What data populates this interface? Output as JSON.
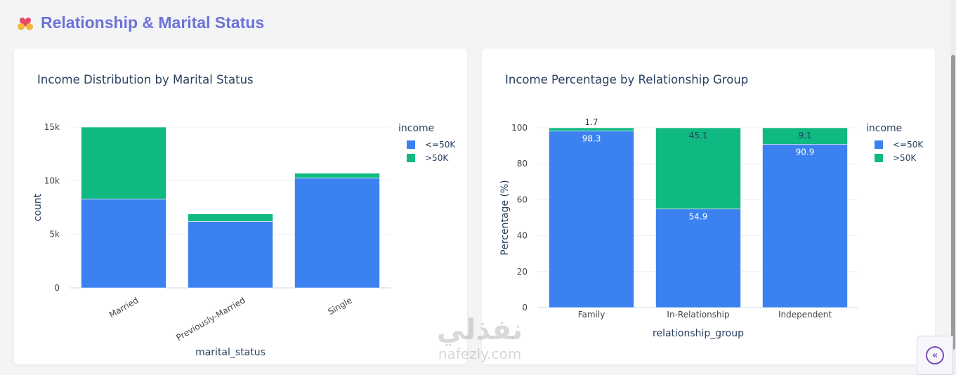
{
  "header": {
    "icon": "heart-hands-icon",
    "title": "Relationship & Marital Status"
  },
  "colors": {
    "le50k": "#3b82f0",
    "gt50k": "#10b981",
    "title": "#6d72d8"
  },
  "chart_data": [
    {
      "type": "bar",
      "stacked": true,
      "title": "Income Distribution by Marital Status",
      "xlabel": "marital_status",
      "ylabel": "count",
      "categories": [
        "Married",
        "Previously-Married",
        "Single"
      ],
      "series": [
        {
          "name": "<=50K",
          "values": [
            8300,
            6200,
            10250
          ]
        },
        {
          "name": ">50K",
          "values": [
            6700,
            700,
            450
          ]
        }
      ],
      "ylim": [
        0,
        15000
      ],
      "yticks": [
        "0",
        "5k",
        "10k",
        "15k"
      ],
      "legend_title": "income",
      "legend_position": "right",
      "grid": true
    },
    {
      "type": "bar",
      "stacked": true,
      "title": "Income Percentage by Relationship Group",
      "xlabel": "relationship_group",
      "ylabel": "Percentage (%)",
      "categories": [
        "Family",
        "In-Relationship",
        "Independent"
      ],
      "series": [
        {
          "name": "<=50K",
          "values": [
            98.3,
            54.9,
            90.9
          ],
          "labels": [
            "98.3",
            "54.9",
            "90.9"
          ]
        },
        {
          "name": ">50K",
          "values": [
            1.7,
            45.1,
            9.1
          ],
          "labels": [
            "1.7",
            "45.1",
            "9.1"
          ]
        }
      ],
      "ylim": [
        0,
        100
      ],
      "yticks": [
        "0",
        "20",
        "40",
        "60",
        "80",
        "100"
      ],
      "legend_title": "income",
      "legend_position": "right",
      "grid": true
    }
  ],
  "watermark": {
    "arabic": "نفذلي",
    "latin": "nafezly.com"
  },
  "sidebar_toggle": {
    "icon": "double-chevron-left-icon",
    "glyph": "«"
  }
}
